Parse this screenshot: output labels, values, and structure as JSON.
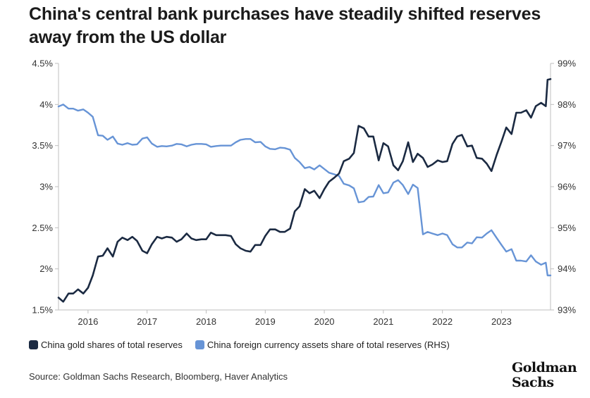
{
  "title": "China's central bank purchases have steadily shifted reserves away from the US dollar",
  "legend": {
    "series1": "China gold shares of total reserves",
    "series2": "China foreign currency assets share of total reserves (RHS)"
  },
  "source": "Source: Goldman Sachs Research, Bloomberg, Haver Analytics",
  "logo": {
    "line1": "Goldman",
    "line2": "Sachs"
  },
  "colors": {
    "gold": "#1b2a42",
    "fx": "#6794d6",
    "axis": "#bfbfbf",
    "text": "#333333"
  },
  "chart_data": {
    "type": "line",
    "title": "China's central bank purchases have steadily shifted reserves away from the US dollar",
    "x_range": [
      2015.5,
      2023.83
    ],
    "x_ticks": [
      2016,
      2017,
      2018,
      2019,
      2020,
      2021,
      2022,
      2023
    ],
    "x_tick_labels": [
      "2016",
      "2017",
      "2018",
      "2019",
      "2020",
      "2021",
      "2022",
      "2023"
    ],
    "y_left": {
      "range": [
        1.5,
        4.5
      ],
      "ticks": [
        1.5,
        2,
        2.5,
        3,
        3.5,
        4,
        4.5
      ],
      "tick_labels": [
        "1.5%",
        "2%",
        "2.5%",
        "3%",
        "3.5%",
        "4%",
        "4.5%"
      ]
    },
    "y_right": {
      "range": [
        93,
        99
      ],
      "ticks": [
        93,
        94,
        95,
        96,
        97,
        98,
        99
      ],
      "tick_labels": [
        "93%",
        "94%",
        "95%",
        "96%",
        "97%",
        "98%",
        "99%"
      ]
    },
    "series": [
      {
        "name": "China gold shares of total reserves",
        "axis": "left",
        "points": [
          [
            2015.5,
            1.65
          ],
          [
            2015.58,
            1.6
          ],
          [
            2015.67,
            1.7
          ],
          [
            2015.75,
            1.7
          ],
          [
            2015.83,
            1.75
          ],
          [
            2015.92,
            1.7
          ],
          [
            2016.0,
            1.77
          ],
          [
            2016.08,
            1.92
          ],
          [
            2016.17,
            2.15
          ],
          [
            2016.25,
            2.16
          ],
          [
            2016.33,
            2.25
          ],
          [
            2016.42,
            2.15
          ],
          [
            2016.5,
            2.33
          ],
          [
            2016.58,
            2.38
          ],
          [
            2016.67,
            2.35
          ],
          [
            2016.75,
            2.39
          ],
          [
            2016.83,
            2.34
          ],
          [
            2016.92,
            2.22
          ],
          [
            2017.0,
            2.19
          ],
          [
            2017.08,
            2.3
          ],
          [
            2017.17,
            2.39
          ],
          [
            2017.25,
            2.37
          ],
          [
            2017.33,
            2.39
          ],
          [
            2017.42,
            2.38
          ],
          [
            2017.5,
            2.33
          ],
          [
            2017.58,
            2.36
          ],
          [
            2017.67,
            2.43
          ],
          [
            2017.75,
            2.37
          ],
          [
            2017.83,
            2.35
          ],
          [
            2017.92,
            2.36
          ],
          [
            2018.0,
            2.36
          ],
          [
            2018.08,
            2.44
          ],
          [
            2018.17,
            2.41
          ],
          [
            2018.25,
            2.41
          ],
          [
            2018.33,
            2.41
          ],
          [
            2018.42,
            2.4
          ],
          [
            2018.5,
            2.3
          ],
          [
            2018.58,
            2.25
          ],
          [
            2018.67,
            2.22
          ],
          [
            2018.75,
            2.21
          ],
          [
            2018.83,
            2.29
          ],
          [
            2018.92,
            2.29
          ],
          [
            2019.0,
            2.4
          ],
          [
            2019.08,
            2.48
          ],
          [
            2019.17,
            2.48
          ],
          [
            2019.25,
            2.45
          ],
          [
            2019.33,
            2.45
          ],
          [
            2019.42,
            2.49
          ],
          [
            2019.5,
            2.7
          ],
          [
            2019.58,
            2.76
          ],
          [
            2019.67,
            2.97
          ],
          [
            2019.75,
            2.92
          ],
          [
            2019.83,
            2.95
          ],
          [
            2019.92,
            2.86
          ],
          [
            2020.0,
            2.97
          ],
          [
            2020.08,
            3.06
          ],
          [
            2020.17,
            3.11
          ],
          [
            2020.25,
            3.16
          ],
          [
            2020.33,
            3.31
          ],
          [
            2020.42,
            3.34
          ],
          [
            2020.5,
            3.41
          ],
          [
            2020.58,
            3.74
          ],
          [
            2020.67,
            3.71
          ],
          [
            2020.75,
            3.61
          ],
          [
            2020.83,
            3.61
          ],
          [
            2020.92,
            3.32
          ],
          [
            2021.0,
            3.53
          ],
          [
            2021.08,
            3.49
          ],
          [
            2021.17,
            3.26
          ],
          [
            2021.25,
            3.2
          ],
          [
            2021.33,
            3.31
          ],
          [
            2021.42,
            3.54
          ],
          [
            2021.5,
            3.3
          ],
          [
            2021.58,
            3.4
          ],
          [
            2021.67,
            3.35
          ],
          [
            2021.75,
            3.24
          ],
          [
            2021.83,
            3.27
          ],
          [
            2021.92,
            3.32
          ],
          [
            2022.0,
            3.3
          ],
          [
            2022.08,
            3.31
          ],
          [
            2022.17,
            3.52
          ],
          [
            2022.25,
            3.61
          ],
          [
            2022.33,
            3.63
          ],
          [
            2022.42,
            3.49
          ],
          [
            2022.5,
            3.5
          ],
          [
            2022.58,
            3.35
          ],
          [
            2022.67,
            3.34
          ],
          [
            2022.75,
            3.28
          ],
          [
            2022.83,
            3.19
          ],
          [
            2022.92,
            3.39
          ],
          [
            2023.0,
            3.55
          ],
          [
            2023.08,
            3.72
          ],
          [
            2023.17,
            3.64
          ],
          [
            2023.25,
            3.9
          ],
          [
            2023.33,
            3.9
          ],
          [
            2023.42,
            3.93
          ],
          [
            2023.5,
            3.84
          ],
          [
            2023.58,
            3.98
          ],
          [
            2023.67,
            4.02
          ],
          [
            2023.75,
            3.98
          ],
          [
            2023.78,
            4.3
          ],
          [
            2023.83,
            4.31
          ]
        ]
      },
      {
        "name": "China foreign currency assets share of total reserves (RHS)",
        "axis": "right",
        "points": [
          [
            2015.5,
            97.95
          ],
          [
            2015.58,
            98.0
          ],
          [
            2015.67,
            97.9
          ],
          [
            2015.75,
            97.9
          ],
          [
            2015.83,
            97.85
          ],
          [
            2015.92,
            97.88
          ],
          [
            2016.0,
            97.8
          ],
          [
            2016.08,
            97.7
          ],
          [
            2016.17,
            97.25
          ],
          [
            2016.25,
            97.24
          ],
          [
            2016.33,
            97.14
          ],
          [
            2016.42,
            97.22
          ],
          [
            2016.5,
            97.05
          ],
          [
            2016.58,
            97.02
          ],
          [
            2016.67,
            97.06
          ],
          [
            2016.75,
            97.02
          ],
          [
            2016.83,
            97.03
          ],
          [
            2016.92,
            97.17
          ],
          [
            2017.0,
            97.2
          ],
          [
            2017.08,
            97.05
          ],
          [
            2017.17,
            96.97
          ],
          [
            2017.25,
            96.99
          ],
          [
            2017.33,
            96.98
          ],
          [
            2017.42,
            97.0
          ],
          [
            2017.5,
            97.04
          ],
          [
            2017.58,
            97.03
          ],
          [
            2017.67,
            96.98
          ],
          [
            2017.75,
            97.02
          ],
          [
            2017.83,
            97.04
          ],
          [
            2017.92,
            97.04
          ],
          [
            2018.0,
            97.03
          ],
          [
            2018.08,
            96.97
          ],
          [
            2018.17,
            96.99
          ],
          [
            2018.25,
            97.0
          ],
          [
            2018.33,
            97.0
          ],
          [
            2018.42,
            97.0
          ],
          [
            2018.5,
            97.08
          ],
          [
            2018.58,
            97.14
          ],
          [
            2018.67,
            97.16
          ],
          [
            2018.75,
            97.16
          ],
          [
            2018.83,
            97.08
          ],
          [
            2018.92,
            97.09
          ],
          [
            2019.0,
            96.98
          ],
          [
            2019.08,
            96.92
          ],
          [
            2019.17,
            96.91
          ],
          [
            2019.25,
            96.95
          ],
          [
            2019.33,
            96.94
          ],
          [
            2019.42,
            96.9
          ],
          [
            2019.5,
            96.7
          ],
          [
            2019.58,
            96.6
          ],
          [
            2019.67,
            96.45
          ],
          [
            2019.75,
            96.48
          ],
          [
            2019.83,
            96.42
          ],
          [
            2019.92,
            96.52
          ],
          [
            2020.0,
            96.43
          ],
          [
            2020.08,
            96.34
          ],
          [
            2020.17,
            96.3
          ],
          [
            2020.25,
            96.26
          ],
          [
            2020.33,
            96.07
          ],
          [
            2020.42,
            96.03
          ],
          [
            2020.5,
            95.96
          ],
          [
            2020.58,
            95.62
          ],
          [
            2020.67,
            95.64
          ],
          [
            2020.75,
            95.75
          ],
          [
            2020.83,
            95.76
          ],
          [
            2020.92,
            96.04
          ],
          [
            2021.0,
            95.84
          ],
          [
            2021.08,
            95.86
          ],
          [
            2021.17,
            96.1
          ],
          [
            2021.25,
            96.16
          ],
          [
            2021.33,
            96.04
          ],
          [
            2021.42,
            95.82
          ],
          [
            2021.5,
            96.05
          ],
          [
            2021.58,
            95.97
          ],
          [
            2021.67,
            94.84
          ],
          [
            2021.75,
            94.9
          ],
          [
            2021.83,
            94.86
          ],
          [
            2021.92,
            94.82
          ],
          [
            2022.0,
            94.86
          ],
          [
            2022.08,
            94.82
          ],
          [
            2022.17,
            94.6
          ],
          [
            2022.25,
            94.52
          ],
          [
            2022.33,
            94.52
          ],
          [
            2022.42,
            94.64
          ],
          [
            2022.5,
            94.62
          ],
          [
            2022.58,
            94.77
          ],
          [
            2022.67,
            94.76
          ],
          [
            2022.75,
            94.86
          ],
          [
            2022.83,
            94.94
          ],
          [
            2022.92,
            94.75
          ],
          [
            2023.0,
            94.58
          ],
          [
            2023.08,
            94.42
          ],
          [
            2023.17,
            94.48
          ],
          [
            2023.25,
            94.2
          ],
          [
            2023.33,
            94.2
          ],
          [
            2023.42,
            94.18
          ],
          [
            2023.5,
            94.33
          ],
          [
            2023.58,
            94.18
          ],
          [
            2023.67,
            94.1
          ],
          [
            2023.75,
            94.15
          ],
          [
            2023.78,
            93.84
          ],
          [
            2023.83,
            93.84
          ]
        ]
      }
    ]
  }
}
